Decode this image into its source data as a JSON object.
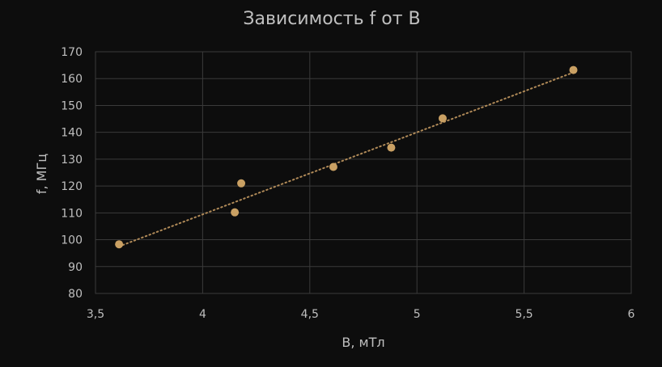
{
  "chart_data": {
    "type": "scatter",
    "title": "Зависимость f от B",
    "xlabel": "B, мТл",
    "ylabel": "f, МГц",
    "xlim": [
      3.5,
      6
    ],
    "ylim": [
      80,
      170
    ],
    "x_ticks": [
      3.5,
      4,
      4.5,
      5,
      5.5,
      6
    ],
    "x_tick_labels": [
      "3,5",
      "4",
      "4,5",
      "5",
      "5,5",
      "6"
    ],
    "y_ticks": [
      80,
      90,
      100,
      110,
      120,
      130,
      140,
      150,
      160,
      170
    ],
    "y_tick_labels": [
      "80",
      "90",
      "100",
      "110",
      "120",
      "130",
      "140",
      "150",
      "160",
      "170"
    ],
    "grid": true,
    "legend": "none",
    "series": [
      {
        "color": "#c9a063",
        "points": [
          {
            "x": 3.61,
            "y": 98.3
          },
          {
            "x": 4.15,
            "y": 110.2
          },
          {
            "x": 4.18,
            "y": 121.0
          },
          {
            "x": 4.61,
            "y": 127.1
          },
          {
            "x": 4.88,
            "y": 134.3
          },
          {
            "x": 5.12,
            "y": 145.2
          },
          {
            "x": 5.73,
            "y": 163.2
          }
        ]
      }
    ],
    "trendline": {
      "type": "linear",
      "style": "dotted",
      "color": "#b08a58",
      "from": {
        "x": 3.61,
        "y": 97.5
      },
      "to": {
        "x": 5.73,
        "y": 162.3
      }
    }
  }
}
